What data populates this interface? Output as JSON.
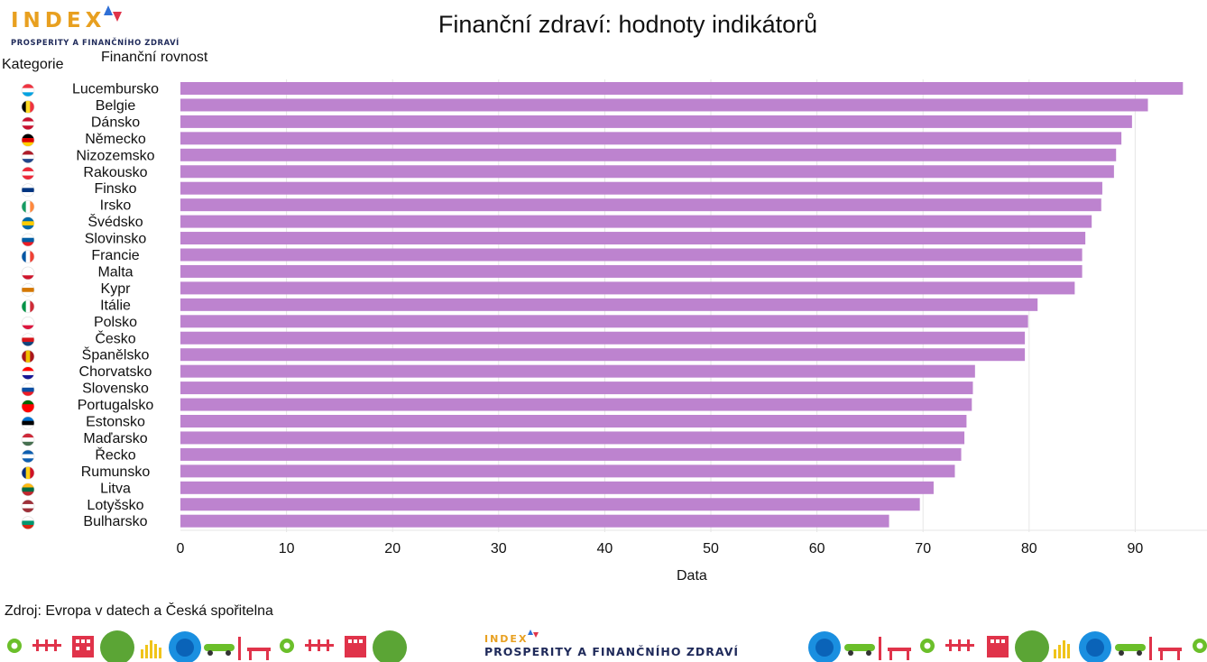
{
  "logo": {
    "word": "INDEX",
    "tagline": "PROSPERITY A FINANČNÍHO ZDRAVÍ"
  },
  "footer": {
    "source": "Zdroj: Evropa v datech a Česká spořitelna"
  },
  "chart_data": {
    "type": "bar",
    "orientation": "horizontal",
    "title": "Finanční zdraví: hodnoty indikátorů",
    "subtitle": "Finanční rovnost",
    "xlabel": "Data",
    "ylabel": "Kategorie",
    "xlim": [
      0,
      100
    ],
    "xticks": [
      0,
      10,
      20,
      30,
      40,
      50,
      60,
      70,
      80,
      90
    ],
    "grid": true,
    "bar_color": "#bd83cf",
    "categories": [
      "Lucembursko",
      "Belgie",
      "Dánsko",
      "Německo",
      "Nizozemsko",
      "Rakousko",
      "Finsko",
      "Irsko",
      "Švédsko",
      "Slovinsko",
      "Francie",
      "Malta",
      "Kypr",
      "Itálie",
      "Polsko",
      "Česko",
      "Španělsko",
      "Chorvatsko",
      "Slovensko",
      "Portugalsko",
      "Estonsko",
      "Maďarsko",
      "Řecko",
      "Rumunsko",
      "Litva",
      "Lotyšsko",
      "Bulharsko"
    ],
    "values": [
      94.5,
      91.2,
      89.7,
      88.7,
      88.2,
      88.0,
      86.9,
      86.8,
      85.9,
      85.3,
      85.0,
      85.0,
      84.3,
      80.8,
      79.9,
      79.6,
      79.6,
      74.9,
      74.7,
      74.6,
      74.1,
      73.9,
      73.6,
      73.0,
      71.0,
      69.7,
      66.8
    ],
    "flags": [
      [
        "#ef3340",
        "#ffffff",
        "#00a2e1"
      ],
      [
        "#000000",
        "#fdda24",
        "#ef3340"
      ],
      [
        "#c8102e",
        "#ffffff",
        "#c8102e"
      ],
      [
        "#000000",
        "#dd0000",
        "#ffce00"
      ],
      [
        "#ae1c28",
        "#ffffff",
        "#21468b"
      ],
      [
        "#ed2939",
        "#ffffff",
        "#ed2939"
      ],
      [
        "#ffffff",
        "#003580",
        "#ffffff"
      ],
      [
        "#169b62",
        "#ffffff",
        "#ff883e"
      ],
      [
        "#006aa7",
        "#fecc00",
        "#006aa7"
      ],
      [
        "#ffffff",
        "#005da4",
        "#ed1c24"
      ],
      [
        "#0055a4",
        "#ffffff",
        "#ef4135"
      ],
      [
        "#ffffff",
        "#ffffff",
        "#cf142b"
      ],
      [
        "#ffffff",
        "#d57800",
        "#ffffff"
      ],
      [
        "#009246",
        "#ffffff",
        "#ce2b37"
      ],
      [
        "#ffffff",
        "#ffffff",
        "#dc143c"
      ],
      [
        "#ffffff",
        "#d7141a",
        "#11457e"
      ],
      [
        "#aa151b",
        "#f1bf00",
        "#aa151b"
      ],
      [
        "#ff0000",
        "#ffffff",
        "#171796"
      ],
      [
        "#ffffff",
        "#0b4ea2",
        "#ee1c25"
      ],
      [
        "#006600",
        "#ff0000",
        "#ff0000"
      ],
      [
        "#0072ce",
        "#000000",
        "#ffffff"
      ],
      [
        "#ce2939",
        "#ffffff",
        "#477050"
      ],
      [
        "#0d5eaf",
        "#ffffff",
        "#0d5eaf"
      ],
      [
        "#002b7f",
        "#fcd116",
        "#ce1126"
      ],
      [
        "#fdb913",
        "#006a44",
        "#c1272d"
      ],
      [
        "#9e3039",
        "#ffffff",
        "#9e3039"
      ],
      [
        "#ffffff",
        "#00966e",
        "#d62612"
      ]
    ]
  }
}
